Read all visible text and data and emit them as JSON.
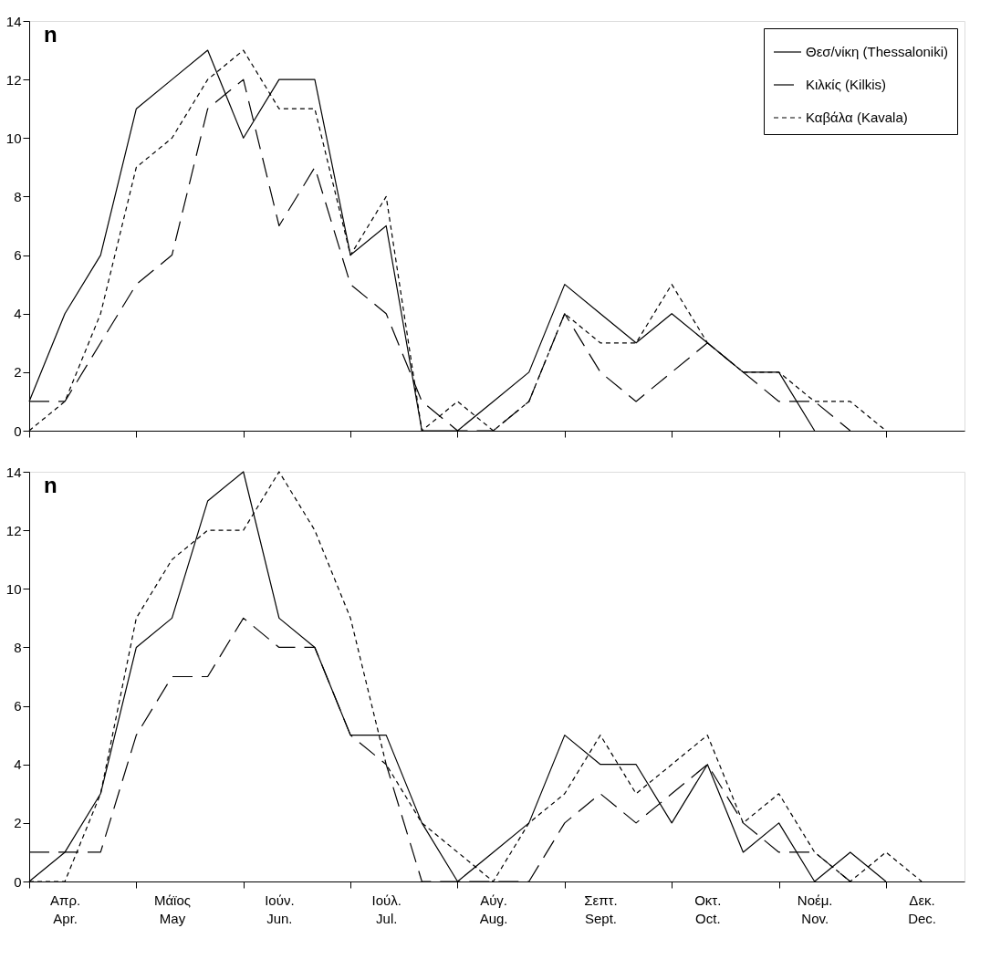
{
  "chart_data": [
    {
      "type": "line",
      "ylabel": "n",
      "categories": [
        null,
        null,
        null,
        null,
        null,
        null,
        null,
        null,
        null,
        null,
        null,
        null,
        null,
        null,
        null,
        null,
        null,
        null,
        null,
        null,
        null,
        null,
        null,
        null,
        null,
        null
      ],
      "ylim": [
        0,
        14
      ],
      "yticks": [
        0,
        2,
        4,
        6,
        8,
        10,
        12,
        14
      ],
      "tick_labels": "y",
      "grid": false,
      "legend": "top right",
      "marker": "none",
      "series": [
        {
          "name": "Θεσ/νίκη (Thessaloniki)",
          "color": "#000000",
          "line_style": "solid",
          "values": [
            1,
            4,
            6,
            11,
            12,
            13,
            10,
            12,
            12,
            6,
            7,
            0,
            0,
            1,
            2,
            5,
            4,
            3,
            4,
            3,
            2,
            2,
            0,
            null,
            null,
            null
          ]
        },
        {
          "name": "Κιλκίς      (Kilkis)",
          "color": "#000000",
          "line_style": "dashed",
          "values": [
            1,
            1,
            3,
            5,
            6,
            11,
            12,
            7,
            9,
            5,
            4,
            1,
            0,
            0,
            1,
            4,
            2,
            1,
            2,
            3,
            2,
            1,
            1,
            0,
            null,
            null
          ]
        },
        {
          "name": "Καβάλα    (Kavala)",
          "color": "#000000",
          "line_style": "dotted",
          "values": [
            0,
            1,
            4,
            9,
            10,
            12,
            13,
            11,
            11,
            6,
            8,
            0,
            1,
            0,
            1,
            4,
            3,
            3,
            5,
            3,
            2,
            2,
            1,
            1,
            0,
            null
          ]
        }
      ]
    },
    {
      "type": "line",
      "ylabel": "n",
      "categories": [
        null,
        "Απρ.\nApr.",
        null,
        null,
        "Μάϊος\nMay",
        null,
        null,
        "Ιούν.\nJun.",
        null,
        null,
        "Ιούλ.\nJul.",
        null,
        null,
        "Αύγ.\nAug.",
        null,
        null,
        "Σεπτ.\nSept.",
        null,
        null,
        "Οκτ.\nOct.",
        null,
        null,
        "Νοέμ.\nNov.",
        null,
        null,
        "Δεκ.\nDec."
      ],
      "ylim": [
        0,
        14
      ],
      "yticks": [
        0,
        2,
        4,
        6,
        8,
        10,
        12,
        14
      ],
      "grid": false,
      "legend": false,
      "marker": "none",
      "series": [
        {
          "color": "#000000",
          "line_style": "solid",
          "values": [
            0,
            1,
            3,
            8,
            9,
            13,
            14,
            9,
            8,
            5,
            5,
            2,
            0,
            1,
            2,
            5,
            4,
            4,
            2,
            4,
            1,
            2,
            0,
            1,
            0,
            null
          ]
        },
        {
          "color": "#000000",
          "line_style": "dashed",
          "values": [
            1,
            1,
            1,
            5,
            7,
            7,
            9,
            8,
            8,
            5,
            4,
            0,
            0,
            0,
            0,
            2,
            3,
            2,
            3,
            4,
            2,
            1,
            1,
            0,
            null,
            null
          ]
        },
        {
          "color": "#000000",
          "line_style": "dotted",
          "values": [
            0,
            0,
            3,
            9,
            11,
            12,
            12,
            14,
            12,
            9,
            4,
            2,
            1,
            0,
            2,
            3,
            5,
            3,
            4,
            5,
            2,
            3,
            1,
            0,
            1,
            0
          ]
        }
      ]
    }
  ]
}
